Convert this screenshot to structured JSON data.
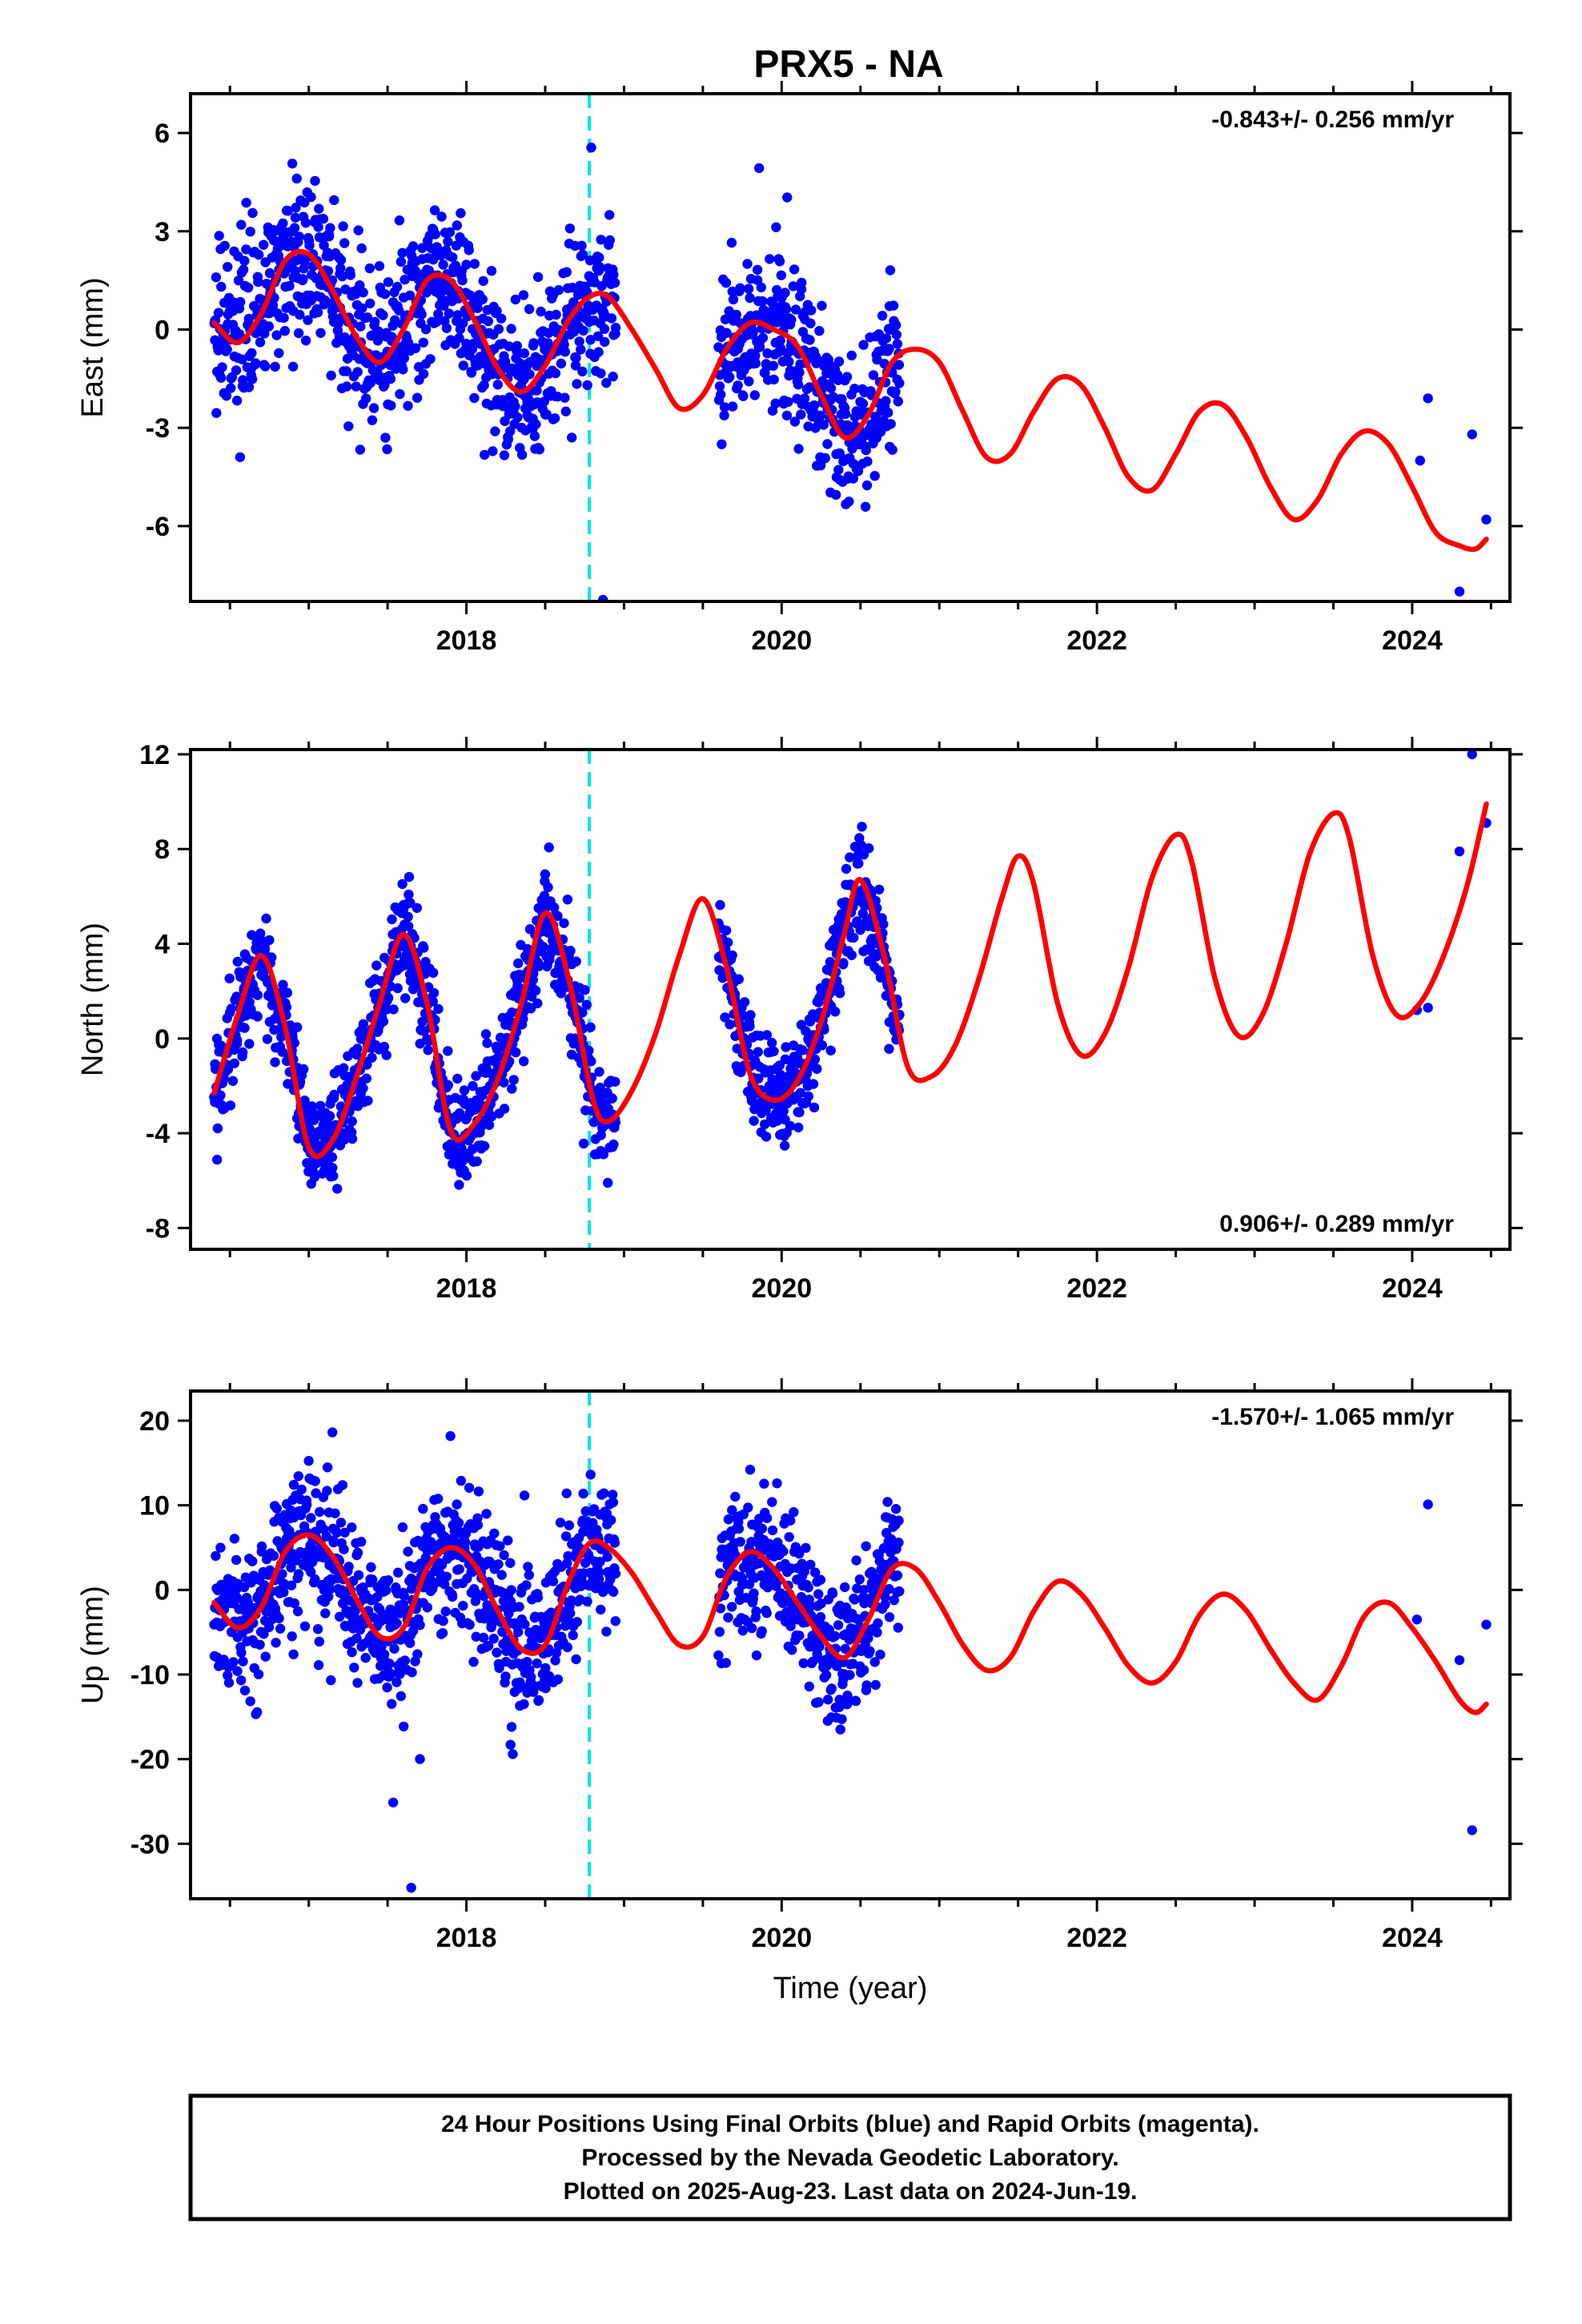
{
  "figure_title": "PRX5 - NA",
  "footer": {
    "lines": [
      "24 Hour Positions Using Final Orbits (blue) and Rapid Orbits (magenta).",
      "Processed by the Nevada Geodetic Laboratory.",
      "Plotted on 2025-Aug-23. Last data on 2024-Jun-19."
    ]
  },
  "colors": {
    "observations": "#0000ff",
    "model_fit": "#ff0000",
    "equipment_change": "#00e5ee",
    "frame": "#000000"
  },
  "chart_data": [
    {
      "type": "scatter",
      "title": "",
      "xlabel": "",
      "ylabel": "East (mm)",
      "xlim": [
        2016.25,
        2024.62
      ],
      "ylim": [
        -8.3,
        7.2
      ],
      "xticks": [
        2018,
        2020,
        2022,
        2024
      ],
      "xtick_labels": [
        "2018",
        "2020",
        "2022",
        "2024"
      ],
      "yticks": [
        -6,
        -3,
        0,
        3,
        6
      ],
      "ytick_labels": [
        "-6",
        "-3",
        "0",
        "3",
        "6"
      ],
      "rate_label": "-0.843+/- 0.256 mm/yr",
      "rate_position": "top-right",
      "equipment_change_year": 2018.78,
      "observations": {
        "segments": [
          [
            2016.4,
            2018.95
          ],
          [
            2019.6,
            2020.75
          ]
        ],
        "extra_points": [
          [
            2024.05,
            -4.0
          ],
          [
            2024.1,
            -2.1
          ],
          [
            2024.3,
            -8.0
          ],
          [
            2024.38,
            -3.2
          ],
          [
            2024.47,
            -5.8
          ]
        ]
      },
      "model": {
        "x": [
          2016.4,
          2016.55,
          2016.7,
          2016.85,
          2017.0,
          2017.15,
          2017.3,
          2017.45,
          2017.6,
          2017.75,
          2017.9,
          2018.05,
          2018.2,
          2018.35,
          2018.5,
          2018.65,
          2018.78,
          2018.9,
          2019.05,
          2019.2,
          2019.35,
          2019.5,
          2019.65,
          2019.8,
          2019.95,
          2020.1,
          2020.25,
          2020.4,
          2020.55,
          2020.7,
          2020.85,
          2021.0,
          2021.15,
          2021.3,
          2021.45,
          2021.6,
          2021.75,
          2021.9,
          2022.05,
          2022.2,
          2022.35,
          2022.5,
          2022.65,
          2022.8,
          2022.95,
          2023.1,
          2023.25,
          2023.4,
          2023.55,
          2023.7,
          2023.85,
          2024.0,
          2024.15,
          2024.3,
          2024.4,
          2024.47
        ],
        "y": [
          0.2,
          -0.4,
          0.5,
          2.1,
          2.3,
          1.2,
          -0.2,
          -1.0,
          0.0,
          1.5,
          1.5,
          0.3,
          -1.2,
          -1.9,
          -1.1,
          0.3,
          1.0,
          1.0,
          0.0,
          -1.2,
          -2.4,
          -2.0,
          -0.6,
          0.2,
          0.0,
          -0.5,
          -2.0,
          -3.3,
          -2.6,
          -1.0,
          -0.6,
          -1.0,
          -2.5,
          -3.9,
          -3.8,
          -2.5,
          -1.5,
          -1.7,
          -3.0,
          -4.5,
          -4.9,
          -3.8,
          -2.5,
          -2.3,
          -3.3,
          -4.8,
          -5.8,
          -5.2,
          -3.8,
          -3.1,
          -3.5,
          -4.8,
          -6.2,
          -6.6,
          -6.7,
          -6.4
        ]
      }
    },
    {
      "type": "scatter",
      "title": "",
      "xlabel": "",
      "ylabel": "North (mm)",
      "xlim": [
        2016.25,
        2024.62
      ],
      "ylim": [
        -8.9,
        12.2
      ],
      "xticks": [
        2018,
        2020,
        2022,
        2024
      ],
      "xtick_labels": [
        "2018",
        "2020",
        "2022",
        "2024"
      ],
      "yticks": [
        -8,
        -4,
        0,
        4,
        8,
        12
      ],
      "ytick_labels": [
        "-8",
        "-4",
        "0",
        "4",
        "8",
        "12"
      ],
      "rate_label": "0.906+/- 0.289 mm/yr",
      "rate_position": "bottom-right",
      "equipment_change_year": 2018.78,
      "observations": {
        "segments": [
          [
            2016.4,
            2018.95
          ],
          [
            2019.6,
            2020.75
          ]
        ],
        "extra_points": [
          [
            2024.03,
            1.2
          ],
          [
            2024.1,
            1.3
          ],
          [
            2024.3,
            7.9
          ],
          [
            2024.38,
            12.0
          ],
          [
            2024.47,
            9.1
          ]
        ]
      },
      "model": {
        "x": [
          2016.4,
          2016.55,
          2016.7,
          2016.85,
          2017.0,
          2017.15,
          2017.3,
          2017.45,
          2017.6,
          2017.75,
          2017.9,
          2018.05,
          2018.2,
          2018.35,
          2018.5,
          2018.65,
          2018.8,
          2018.9,
          2019.05,
          2019.2,
          2019.35,
          2019.5,
          2019.65,
          2019.8,
          2019.95,
          2020.1,
          2020.25,
          2020.4,
          2020.5,
          2020.65,
          2020.8,
          2020.95,
          2021.1,
          2021.25,
          2021.4,
          2021.5,
          2021.6,
          2021.75,
          2021.9,
          2022.05,
          2022.2,
          2022.35,
          2022.5,
          2022.6,
          2022.75,
          2022.9,
          2023.05,
          2023.2,
          2023.35,
          2023.5,
          2023.6,
          2023.75,
          2023.9,
          2024.05,
          2024.2,
          2024.35,
          2024.47
        ],
        "y": [
          -2.3,
          1.0,
          3.5,
          0.5,
          -4.6,
          -4.3,
          -1.7,
          1.5,
          4.4,
          1.5,
          -3.9,
          -3.6,
          -1.7,
          1.5,
          5.3,
          2.5,
          -2.5,
          -3.5,
          -2.2,
          0.2,
          3.5,
          5.9,
          3.0,
          -1.5,
          -2.6,
          -1.8,
          0.7,
          4.5,
          6.7,
          3.5,
          -1.2,
          -1.6,
          -0.3,
          2.5,
          6.0,
          7.7,
          6.5,
          1.5,
          -0.7,
          0.2,
          3.0,
          6.8,
          8.6,
          7.5,
          2.5,
          0.1,
          1.0,
          4.0,
          7.8,
          9.5,
          8.5,
          3.5,
          1.0,
          1.5,
          3.5,
          6.5,
          9.9
        ]
      }
    },
    {
      "type": "scatter",
      "title": "",
      "xlabel": "Time (year)",
      "ylabel": "Up (mm)",
      "xlim": [
        2016.25,
        2024.62
      ],
      "ylim": [
        -36.5,
        23.5
      ],
      "xticks": [
        2018,
        2020,
        2022,
        2024
      ],
      "xtick_labels": [
        "2018",
        "2020",
        "2022",
        "2024"
      ],
      "yticks": [
        -30,
        -20,
        -10,
        0,
        10,
        20
      ],
      "ytick_labels": [
        "-30",
        "-20",
        "-10",
        "0",
        "10",
        "20"
      ],
      "rate_label": "-1.570+/- 1.065 mm/yr",
      "rate_position": "top-right",
      "equipment_change_year": 2018.78,
      "observations": {
        "segments": [
          [
            2016.4,
            2018.95
          ],
          [
            2019.6,
            2020.75
          ]
        ],
        "extra_points": [
          [
            2017.65,
            -35.2
          ],
          [
            2018.28,
            -18.3
          ],
          [
            2024.03,
            -3.5
          ],
          [
            2024.1,
            10.1
          ],
          [
            2024.3,
            -8.3
          ],
          [
            2024.38,
            -28.4
          ],
          [
            2024.47,
            -4.1
          ]
        ]
      },
      "model": {
        "x": [
          2016.4,
          2016.55,
          2016.7,
          2016.85,
          2017.0,
          2017.15,
          2017.3,
          2017.45,
          2017.6,
          2017.75,
          2017.9,
          2018.05,
          2018.2,
          2018.35,
          2018.5,
          2018.65,
          2018.78,
          2018.9,
          2019.05,
          2019.2,
          2019.35,
          2019.5,
          2019.65,
          2019.8,
          2019.95,
          2020.1,
          2020.25,
          2020.4,
          2020.55,
          2020.7,
          2020.85,
          2021.0,
          2021.15,
          2021.3,
          2021.45,
          2021.6,
          2021.75,
          2021.9,
          2022.05,
          2022.2,
          2022.35,
          2022.5,
          2022.65,
          2022.8,
          2022.95,
          2023.1,
          2023.25,
          2023.4,
          2023.55,
          2023.7,
          2023.85,
          2024.0,
          2024.15,
          2024.3,
          2024.4,
          2024.47
        ],
        "y": [
          -1.5,
          -4.5,
          -2.0,
          4.5,
          6.5,
          4.0,
          -1.0,
          -5.5,
          -4.5,
          2.5,
          5.0,
          3.0,
          -2.5,
          -7.0,
          -6.5,
          1.0,
          5.5,
          5.0,
          2.0,
          -2.5,
          -6.5,
          -5.5,
          1.5,
          4.5,
          2.5,
          -1.5,
          -5.5,
          -8.0,
          -3.5,
          2.5,
          2.5,
          -1.5,
          -6.5,
          -9.5,
          -8.0,
          -2.5,
          1.0,
          -0.5,
          -4.5,
          -9.0,
          -11.0,
          -8.5,
          -3.0,
          -0.5,
          -2.5,
          -7.0,
          -11.0,
          -13.0,
          -9.0,
          -3.0,
          -1.5,
          -4.5,
          -8.5,
          -13.0,
          -14.5,
          -13.5
        ]
      }
    }
  ]
}
